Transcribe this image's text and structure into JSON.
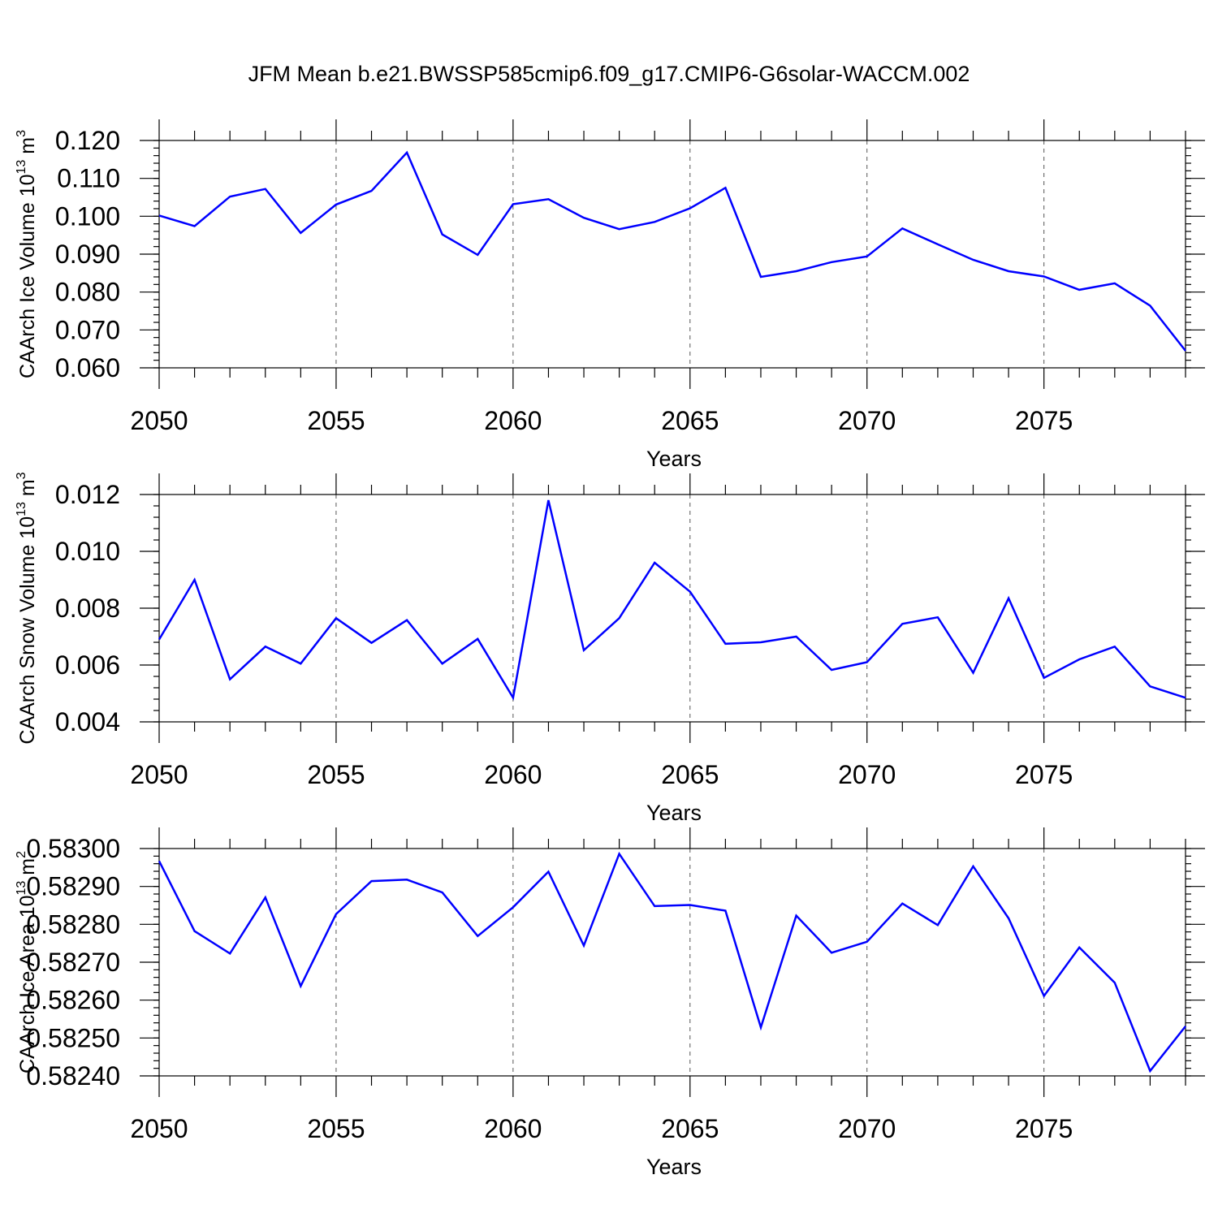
{
  "title": "JFM Mean b.e21.BWSSP585cmip6.f09_g17.CMIP6-G6solar-WACCM.002",
  "chart_data": [
    {
      "type": "line",
      "name": "ice-volume",
      "xlabel": "Years",
      "ylabel": "CAArch Ice Volume 10",
      "ylabel_sup": "13",
      "ylabel_unit": " m",
      "ylabel_unit_sup": "3",
      "xlim": [
        2050,
        2079
      ],
      "ylim": [
        0.06,
        0.12
      ],
      "xticks": [
        2050,
        2055,
        2060,
        2065,
        2070,
        2075
      ],
      "yticks": [
        0.06,
        0.07,
        0.08,
        0.09,
        0.1,
        0.11,
        0.12
      ],
      "ytick_labels": [
        "0.060",
        "0.070",
        "0.080",
        "0.090",
        "0.100",
        "0.110",
        "0.120"
      ],
      "yminor_step": 0.002,
      "x": [
        2050,
        2051,
        2052,
        2053,
        2054,
        2055,
        2056,
        2057,
        2058,
        2059,
        2060,
        2061,
        2062,
        2063,
        2064,
        2065,
        2066,
        2067,
        2068,
        2069,
        2070,
        2071,
        2072,
        2073,
        2074,
        2075,
        2076,
        2077,
        2078,
        2079
      ],
      "values": [
        0.1002,
        0.0974,
        0.1052,
        0.1072,
        0.0956,
        0.1031,
        0.1067,
        0.1168,
        0.0952,
        0.0898,
        0.1032,
        0.1045,
        0.0996,
        0.0966,
        0.0985,
        0.1021,
        0.1075,
        0.084,
        0.0855,
        0.0879,
        0.0894,
        0.0968,
        0.0926,
        0.0885,
        0.0855,
        0.0841,
        0.0806,
        0.0823,
        0.0764,
        0.0645
      ]
    },
    {
      "type": "line",
      "name": "snow-volume",
      "xlabel": "Years",
      "ylabel": "CAArch Snow Volume 10",
      "ylabel_sup": "13",
      "ylabel_unit": " m",
      "ylabel_unit_sup": "3",
      "xlim": [
        2050,
        2079
      ],
      "ylim": [
        0.004,
        0.012
      ],
      "xticks": [
        2050,
        2055,
        2060,
        2065,
        2070,
        2075
      ],
      "yticks": [
        0.004,
        0.006,
        0.008,
        0.01,
        0.012
      ],
      "ytick_labels": [
        "0.004",
        "0.006",
        "0.008",
        "0.010",
        "0.012"
      ],
      "yminor_step": 0.0004,
      "x": [
        2050,
        2051,
        2052,
        2053,
        2054,
        2055,
        2056,
        2057,
        2058,
        2059,
        2060,
        2061,
        2062,
        2063,
        2064,
        2065,
        2066,
        2067,
        2068,
        2069,
        2070,
        2071,
        2072,
        2073,
        2074,
        2075,
        2076,
        2077,
        2078,
        2079
      ],
      "values": [
        0.0069,
        0.009,
        0.0055,
        0.00665,
        0.00605,
        0.00765,
        0.00678,
        0.00758,
        0.00605,
        0.00692,
        0.00485,
        0.0118,
        0.00652,
        0.00765,
        0.0096,
        0.00858,
        0.00675,
        0.0068,
        0.007,
        0.00583,
        0.0061,
        0.00745,
        0.00768,
        0.00573,
        0.00835,
        0.00555,
        0.0062,
        0.00665,
        0.00525,
        0.00485
      ]
    },
    {
      "type": "line",
      "name": "ice-area",
      "xlabel": "Years",
      "ylabel": "CAArch Ice Area 10",
      "ylabel_sup": "13",
      "ylabel_unit": " m",
      "ylabel_unit_sup": "2",
      "xlim": [
        2050,
        2079
      ],
      "ylim": [
        0.5824,
        0.583
      ],
      "xticks": [
        2050,
        2055,
        2060,
        2065,
        2070,
        2075
      ],
      "yticks": [
        0.5824,
        0.5825,
        0.5826,
        0.5827,
        0.5828,
        0.5829,
        0.583
      ],
      "ytick_labels": [
        "0.58240",
        "0.58250",
        "0.58260",
        "0.58270",
        "0.58280",
        "0.58290",
        "0.58300"
      ],
      "yminor_step": 2e-05,
      "x": [
        2050,
        2051,
        2052,
        2053,
        2054,
        2055,
        2056,
        2057,
        2058,
        2059,
        2060,
        2061,
        2062,
        2063,
        2064,
        2065,
        2066,
        2067,
        2068,
        2069,
        2070,
        2071,
        2072,
        2073,
        2074,
        2075,
        2076,
        2077,
        2078,
        2079
      ],
      "values": [
        0.582967,
        0.582782,
        0.582723,
        0.582871,
        0.582637,
        0.582827,
        0.582914,
        0.582918,
        0.582884,
        0.582769,
        0.582845,
        0.582939,
        0.582744,
        0.582986,
        0.582848,
        0.582851,
        0.582836,
        0.582528,
        0.582823,
        0.582725,
        0.582754,
        0.582855,
        0.582798,
        0.582953,
        0.582816,
        0.582611,
        0.582739,
        0.582646,
        0.582413,
        0.582531
      ]
    }
  ]
}
